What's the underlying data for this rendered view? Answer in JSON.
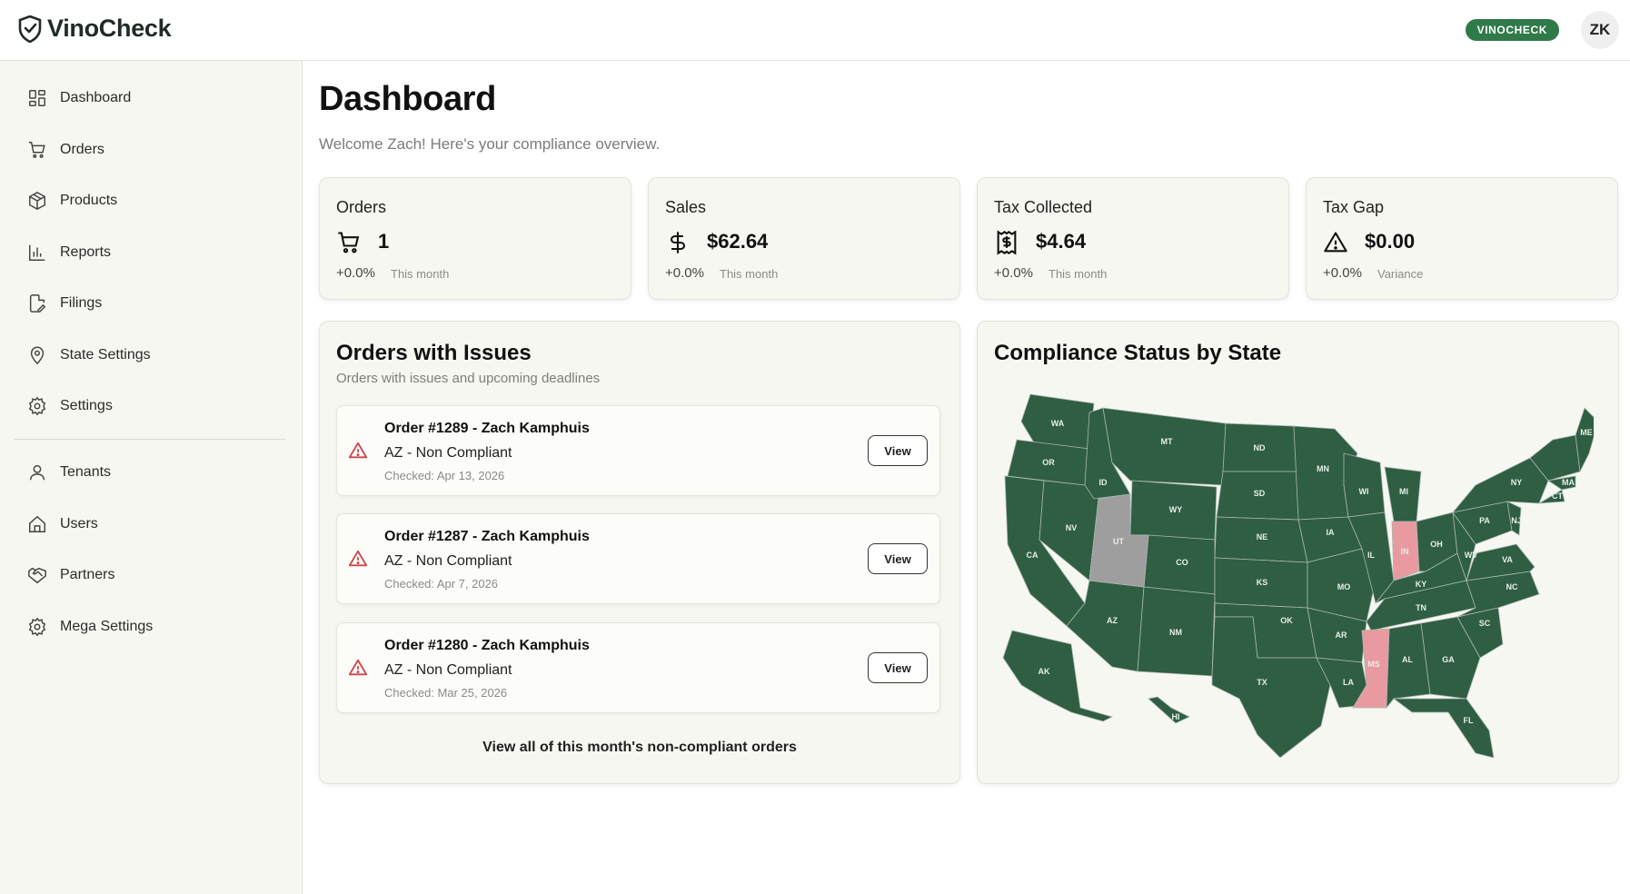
{
  "app": {
    "name": "VinoCheck"
  },
  "header": {
    "tenant_badge": "VINOCHECK",
    "avatar_initials": "ZK"
  },
  "sidebar": {
    "items": [
      {
        "label": "Dashboard",
        "icon": "dashboard-icon"
      },
      {
        "label": "Orders",
        "icon": "cart-icon"
      },
      {
        "label": "Products",
        "icon": "box-icon"
      },
      {
        "label": "Reports",
        "icon": "bar-chart-icon"
      },
      {
        "label": "Filings",
        "icon": "file-edit-icon"
      },
      {
        "label": "State Settings",
        "icon": "map-pin-icon"
      },
      {
        "label": "Settings",
        "icon": "gear-icon"
      }
    ],
    "admin_items": [
      {
        "label": "Tenants",
        "icon": "user-icon"
      },
      {
        "label": "Users",
        "icon": "home-icon"
      },
      {
        "label": "Partners",
        "icon": "handshake-icon"
      },
      {
        "label": "Mega Settings",
        "icon": "gear-icon"
      }
    ]
  },
  "page": {
    "title": "Dashboard",
    "subtitle": "Welcome Zach! Here's your compliance overview."
  },
  "stats": [
    {
      "label": "Orders",
      "value": "1",
      "change": "+0.0%",
      "note": "This month",
      "icon": "cart-icon"
    },
    {
      "label": "Sales",
      "value": "$62.64",
      "change": "+0.0%",
      "note": "This month",
      "icon": "dollar-icon"
    },
    {
      "label": "Tax Collected",
      "value": "$4.64",
      "change": "+0.0%",
      "note": "This month",
      "icon": "receipt-icon"
    },
    {
      "label": "Tax Gap",
      "value": "$0.00",
      "change": "+0.0%",
      "note": "Variance",
      "icon": "warning-icon"
    }
  ],
  "issues_panel": {
    "title": "Orders with Issues",
    "subtitle": "Orders with issues and upcoming deadlines",
    "orders": [
      {
        "title": "Order #1289 - Zach Kamphuis",
        "status": "AZ - Non Compliant",
        "checked": "Checked: Apr 13, 2026",
        "button": "View"
      },
      {
        "title": "Order #1287 - Zach Kamphuis",
        "status": "AZ - Non Compliant",
        "checked": "Checked: Apr 7, 2026",
        "button": "View"
      },
      {
        "title": "Order #1280 - Zach Kamphuis",
        "status": "AZ - Non Compliant",
        "checked": "Checked: Mar 25, 2026",
        "button": "View"
      }
    ],
    "view_all": "View all of this month's non-compliant orders"
  },
  "map_panel": {
    "title": "Compliance Status by State",
    "colors": {
      "compliant": "#2f5e43",
      "non_compliant": "#e89aa0",
      "no_data": "#9e9e9e"
    },
    "non_compliant_states": [
      "IN",
      "MS"
    ],
    "no_data_states": [
      "UT"
    ],
    "state_labels": [
      "WA",
      "OR",
      "CA",
      "NV",
      "ID",
      "MT",
      "WY",
      "UT",
      "CO",
      "AZ",
      "NM",
      "ND",
      "SD",
      "NE",
      "KS",
      "OK",
      "TX",
      "MN",
      "IA",
      "MO",
      "AR",
      "LA",
      "WI",
      "IL",
      "MI",
      "IN",
      "OH",
      "KY",
      "TN",
      "MS",
      "AL",
      "GA",
      "FL",
      "SC",
      "NC",
      "VA",
      "WV",
      "PA",
      "NY",
      "ME",
      "MA",
      "CT",
      "NJ",
      "AK",
      "HI"
    ]
  }
}
